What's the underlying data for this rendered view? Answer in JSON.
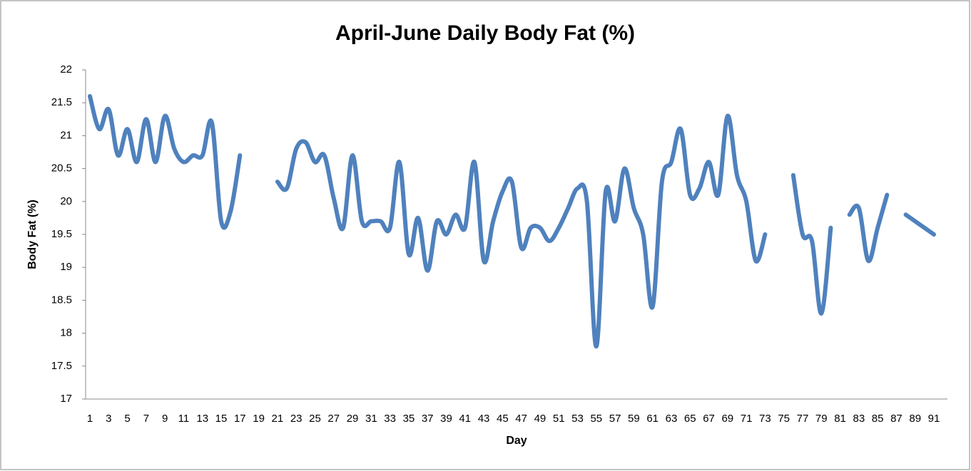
{
  "chart_data": {
    "type": "line",
    "title": "April-June Daily Body Fat (%)",
    "x_label": "Day",
    "y_label": "Body Fat (%)",
    "categories": [
      1,
      null,
      3,
      null,
      5,
      null,
      7,
      null,
      9,
      null,
      11,
      null,
      13,
      null,
      15,
      null,
      17,
      null,
      19,
      null,
      21,
      null,
      23,
      null,
      25,
      null,
      27,
      null,
      29,
      null,
      31,
      null,
      33,
      null,
      35,
      null,
      37,
      null,
      39,
      null,
      41,
      null,
      43,
      null,
      45,
      null,
      47,
      null,
      49,
      null,
      51,
      null,
      53,
      null,
      55,
      null,
      57,
      null,
      59,
      null,
      61,
      null,
      63,
      null,
      65,
      null,
      67,
      null,
      69,
      null,
      71,
      null,
      73,
      null,
      75,
      null,
      77,
      null,
      79,
      null,
      81,
      null,
      83,
      null,
      85,
      null,
      87,
      null,
      89,
      null,
      91
    ],
    "values": [
      21.6,
      21.1,
      21.4,
      20.7,
      21.1,
      20.6,
      21.25,
      20.6,
      21.3,
      20.8,
      20.6,
      20.7,
      20.7,
      21.2,
      19.7,
      19.85,
      20.7,
      null,
      null,
      null,
      20.3,
      20.2,
      20.8,
      20.9,
      20.6,
      20.7,
      20.05,
      19.6,
      20.7,
      19.7,
      19.7,
      19.7,
      19.6,
      20.6,
      19.2,
      19.75,
      18.95,
      19.7,
      19.5,
      19.8,
      19.6,
      20.6,
      19.1,
      19.7,
      20.15,
      20.3,
      19.3,
      19.6,
      19.6,
      19.4,
      19.6,
      19.9,
      20.2,
      20.0,
      17.8,
      20.15,
      19.7,
      20.5,
      19.9,
      19.5,
      18.4,
      20.3,
      20.6,
      21.1,
      20.1,
      20.2,
      20.6,
      20.1,
      21.3,
      20.4,
      20.0,
      19.1,
      19.5,
      null,
      null,
      20.4,
      19.5,
      19.4,
      18.3,
      19.6,
      null,
      19.8,
      19.9,
      19.1,
      19.6,
      20.1,
      null,
      19.8,
      19.7,
      19.6,
      19.5
    ],
    "color": "#4f81bd",
    "ylim": [
      17,
      22
    ],
    "yticks": [
      17,
      17.5,
      18,
      18.5,
      19,
      19.5,
      20,
      20.5,
      21,
      21.5,
      22
    ]
  }
}
